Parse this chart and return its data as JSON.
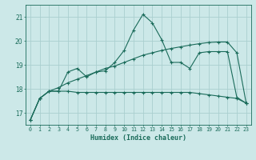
{
  "title": "",
  "xlabel": "Humidex (Indice chaleur)",
  "ylabel": "",
  "bg_color": "#cce8e8",
  "grid_color": "#aacfcf",
  "line_color": "#1a6b5a",
  "x_ticks": [
    0,
    1,
    2,
    3,
    4,
    5,
    6,
    7,
    8,
    9,
    10,
    11,
    12,
    13,
    14,
    15,
    16,
    17,
    18,
    19,
    20,
    21,
    22,
    23
  ],
  "y_ticks": [
    17,
    18,
    19,
    20,
    21
  ],
  "ylim": [
    16.5,
    21.5
  ],
  "xlim": [
    -0.5,
    23.5
  ],
  "line1": [
    16.7,
    17.6,
    17.9,
    17.9,
    18.7,
    18.85,
    18.5,
    18.7,
    18.75,
    19.1,
    19.6,
    20.45,
    21.1,
    20.75,
    20.05,
    19.1,
    19.1,
    18.85,
    19.5,
    19.55,
    19.55,
    19.55,
    17.65,
    17.4
  ],
  "line2": [
    16.7,
    17.6,
    17.9,
    17.9,
    17.9,
    17.85,
    17.85,
    17.85,
    17.85,
    17.85,
    17.85,
    17.85,
    17.85,
    17.85,
    17.85,
    17.85,
    17.85,
    17.85,
    17.8,
    17.75,
    17.7,
    17.65,
    17.6,
    17.4
  ],
  "line3": [
    16.7,
    17.6,
    17.9,
    18.05,
    18.25,
    18.4,
    18.55,
    18.7,
    18.85,
    18.95,
    19.1,
    19.25,
    19.4,
    19.5,
    19.6,
    19.68,
    19.75,
    19.82,
    19.88,
    19.93,
    19.95,
    19.95,
    19.5,
    17.4
  ],
  "xlabel_fontsize": 6.0,
  "ytick_fontsize": 5.5,
  "xtick_fontsize": 4.8
}
